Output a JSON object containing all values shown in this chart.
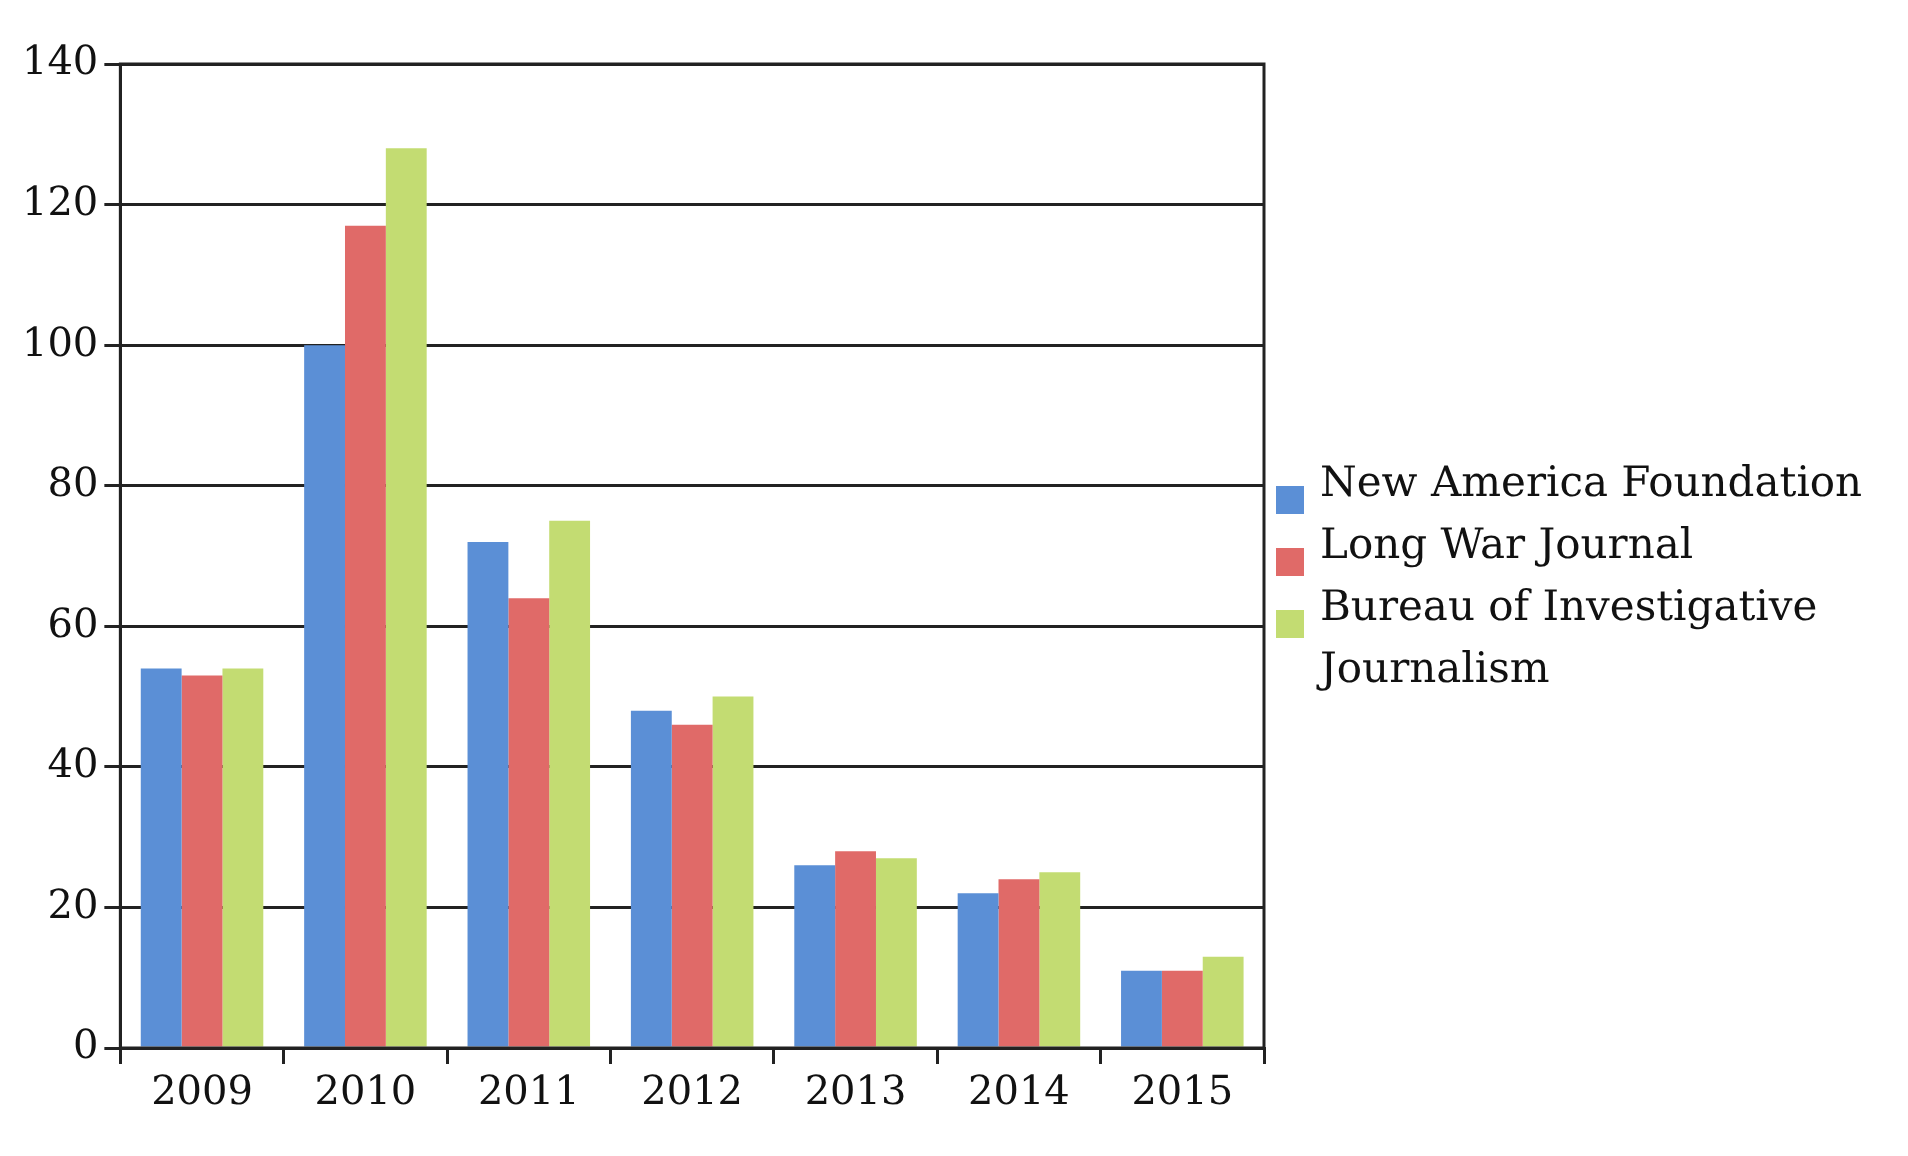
{
  "chart_data": {
    "type": "bar",
    "categories": [
      "2009",
      "2010",
      "2011",
      "2012",
      "2013",
      "2014",
      "2015"
    ],
    "series": [
      {
        "name": "New America Foundation",
        "color": "#5b8fd6",
        "values": [
          54,
          100,
          72,
          48,
          26,
          22,
          11
        ]
      },
      {
        "name": "Long War Journal",
        "color": "#e06a68",
        "values": [
          53,
          117,
          64,
          46,
          28,
          24,
          11
        ]
      },
      {
        "name": "Bureau of Investigative Journalism",
        "color": "#c3dc72",
        "values": [
          54,
          128,
          75,
          50,
          27,
          25,
          13
        ]
      }
    ],
    "ylim": [
      0,
      140
    ],
    "yticks": [
      0,
      20,
      40,
      60,
      80,
      100,
      120,
      140
    ],
    "grid": "y",
    "legend": "right"
  }
}
